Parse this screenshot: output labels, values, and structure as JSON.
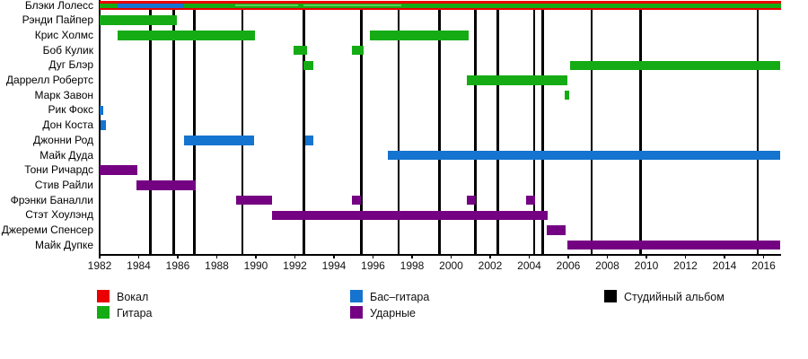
{
  "chart_data": {
    "type": "bar",
    "subtype": "gantt-band-membership-timeline",
    "title": "",
    "xlabel": "",
    "ylabel": "",
    "x_axis": {
      "min": 1982,
      "max": 2017,
      "ticks": [
        1982,
        1984,
        1986,
        1988,
        1990,
        1992,
        1994,
        1996,
        1998,
        2000,
        2002,
        2004,
        2006,
        2008,
        2010,
        2012,
        2014,
        2016
      ]
    },
    "grid": false,
    "legend_position": "bottom",
    "colors": {
      "vocals": "#ea0000",
      "guitar": "#15ab15",
      "guitar_light": "#5ecf5e",
      "bass": "#1574cf",
      "drums": "#740082",
      "album": "#000000"
    },
    "members": [
      {
        "name": "Блэки Лолесс",
        "bars": [
          {
            "role": "vocals",
            "from": 1982,
            "to": 2016.9,
            "layer": "full"
          },
          {
            "role": "guitar",
            "from": 1982,
            "to": 1982.9,
            "layer": "inner"
          },
          {
            "role": "bass",
            "from": 1982.9,
            "to": 1986.3,
            "layer": "inner"
          },
          {
            "role": "guitar",
            "from": 1986.3,
            "to": 2016.9,
            "layer": "inner"
          },
          {
            "role": "guitar_light",
            "from": 1988.95,
            "to": 1992.15,
            "layer": "line"
          },
          {
            "role": "guitar_light",
            "from": 1992.45,
            "to": 1997.45,
            "layer": "line"
          }
        ]
      },
      {
        "name": "Рэнди Пайпер",
        "bars": [
          {
            "role": "guitar",
            "from": 1982,
            "to": 1985.95,
            "layer": "full"
          }
        ]
      },
      {
        "name": "Крис Холмс",
        "bars": [
          {
            "role": "guitar",
            "from": 1982.9,
            "to": 1989.95,
            "layer": "full"
          },
          {
            "role": "guitar",
            "from": 1995.85,
            "to": 2000.9,
            "layer": "full"
          }
        ]
      },
      {
        "name": "Боб Кулик",
        "bars": [
          {
            "role": "guitar",
            "from": 1991.95,
            "to": 1992.6,
            "layer": "full"
          },
          {
            "role": "guitar",
            "from": 1994.9,
            "to": 1995.5,
            "layer": "full"
          }
        ]
      },
      {
        "name": "Дуг Блэр",
        "bars": [
          {
            "role": "guitar",
            "from": 1992.45,
            "to": 1992.95,
            "layer": "full"
          },
          {
            "role": "guitar",
            "from": 2006.1,
            "to": 2016.85,
            "layer": "full"
          }
        ]
      },
      {
        "name": "Даррелл Робертс",
        "bars": [
          {
            "role": "guitar",
            "from": 2000.8,
            "to": 2005.95,
            "layer": "full"
          }
        ]
      },
      {
        "name": "Марк Завон",
        "bars": [
          {
            "role": "guitar",
            "from": 2005.8,
            "to": 2006.05,
            "layer": "full"
          }
        ]
      },
      {
        "name": "Рик Фокс",
        "bars": [
          {
            "role": "bass",
            "from": 1982,
            "to": 1982.2,
            "layer": "full"
          }
        ]
      },
      {
        "name": "Дон Коста",
        "bars": [
          {
            "role": "bass",
            "from": 1982.05,
            "to": 1982.3,
            "layer": "full"
          }
        ]
      },
      {
        "name": "Джонни Род",
        "bars": [
          {
            "role": "bass",
            "from": 1986.3,
            "to": 1989.9,
            "layer": "full"
          },
          {
            "role": "bass",
            "from": 1992.55,
            "to": 1992.95,
            "layer": "full"
          }
        ]
      },
      {
        "name": "Майк Дуда",
        "bars": [
          {
            "role": "bass",
            "from": 1996.75,
            "to": 2016.85,
            "layer": "full"
          }
        ]
      },
      {
        "name": "Тони Ричардс",
        "bars": [
          {
            "role": "drums",
            "from": 1982,
            "to": 1983.95,
            "layer": "full"
          }
        ]
      },
      {
        "name": "Стив Райли",
        "bars": [
          {
            "role": "drums",
            "from": 1983.9,
            "to": 1986.9,
            "layer": "full"
          }
        ]
      },
      {
        "name": "Фрэнки Баналли",
        "bars": [
          {
            "role": "drums",
            "from": 1989,
            "to": 1990.85,
            "layer": "full"
          },
          {
            "role": "drums",
            "from": 1994.9,
            "to": 1995.4,
            "layer": "full"
          },
          {
            "role": "drums",
            "from": 2000.8,
            "to": 2001.25,
            "layer": "full"
          },
          {
            "role": "drums",
            "from": 2003.85,
            "to": 2004.3,
            "layer": "full"
          }
        ]
      },
      {
        "name": "Стэт Хоулэнд",
        "bars": [
          {
            "role": "drums",
            "from": 1990.85,
            "to": 2004.95,
            "layer": "full"
          }
        ]
      },
      {
        "name": "Джереми Спенсер",
        "bars": [
          {
            "role": "drums",
            "from": 2004.9,
            "to": 2005.85,
            "layer": "full"
          }
        ]
      },
      {
        "name": "Майк Дупке",
        "bars": [
          {
            "role": "drums",
            "from": 2005.95,
            "to": 2016.85,
            "layer": "full"
          }
        ]
      }
    ],
    "albums": [
      1984.6,
      1985.8,
      1986.85,
      1989.3,
      1992.45,
      1995.4,
      1997.3,
      1999.4,
      2001.25,
      2002.4,
      2004.25,
      2004.7,
      2007.2,
      2009.7,
      2015.7
    ]
  },
  "legend": {
    "items": [
      {
        "label": "Вокал",
        "role": "vocals",
        "col": 0,
        "row": 0
      },
      {
        "label": "Гитара",
        "role": "guitar",
        "col": 0,
        "row": 1
      },
      {
        "label": "Бас–гитара",
        "role": "bass",
        "col": 1,
        "row": 0
      },
      {
        "label": "Ударные",
        "role": "drums",
        "col": 1,
        "row": 1
      },
      {
        "label": "Студийный альбом",
        "role": "album",
        "col": 2,
        "row": 0
      }
    ]
  }
}
